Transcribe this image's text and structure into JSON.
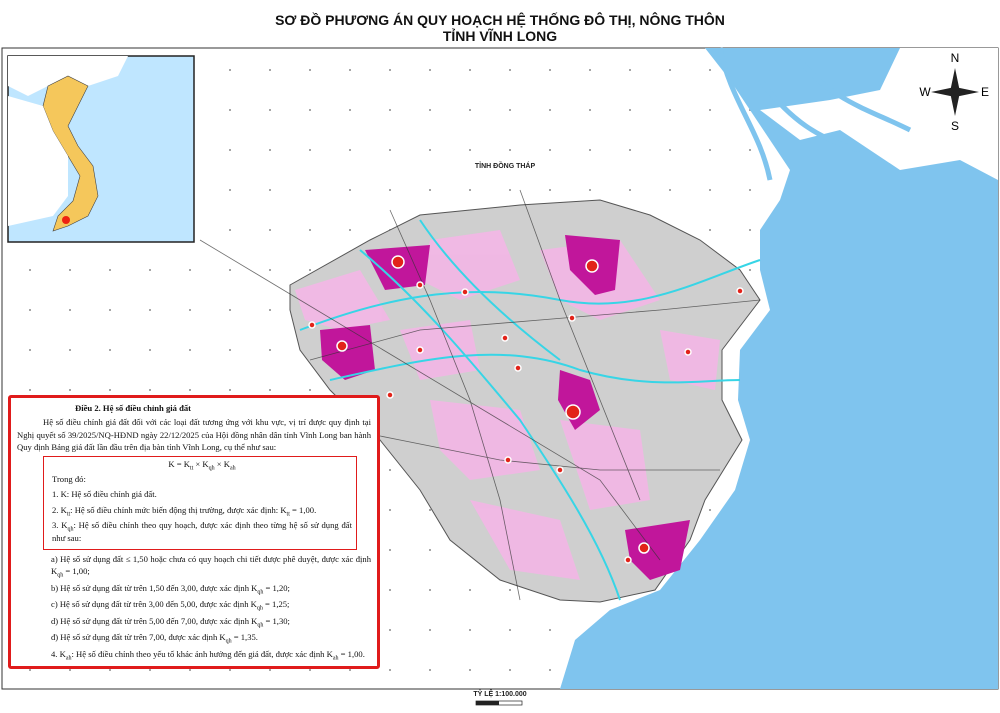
{
  "header": {
    "title": "SƠ ĐỒ PHƯƠNG ÁN QUY HOẠCH HỆ THỐNG ĐÔ THỊ, NÔNG THÔN",
    "subtitle": "TỈNH VĨNH LONG"
  },
  "map": {
    "region_label": "TỈNH ĐỒNG THÁP",
    "compass": {
      "north": "N",
      "west": "W",
      "east": "E",
      "south": "S"
    },
    "scale": "TỶ LỆ 1:100.000"
  },
  "document": {
    "heading": "Điều 2. Hệ số điều chỉnh giá đất",
    "paragraph": "Hệ số điều chỉnh giá đất đối với các loại đất tương ứng với khu vực, vị trí được quy định tại Nghị quyết số 39/2025/NQ-HĐND ngày 22/12/2025 của Hội đồng nhân dân tỉnh Vĩnh Long ban hành Quy định Bảng giá đất lần đầu trên địa bàn tỉnh Vĩnh Long, cụ thể như sau:",
    "formula": [
      "K = K",
      "tt",
      " × K",
      "qh",
      " × K",
      "ah"
    ],
    "boxed_items": [
      [
        "Trong đó:"
      ],
      [
        "1. K: Hệ số điều chỉnh giá đất."
      ],
      [
        "2. K",
        "tt",
        ": Hệ số điều chỉnh mức biến động thị trường, được xác định: K",
        "tt",
        " = 1,00."
      ],
      [
        "3. K",
        "qh",
        ": Hệ số điều chỉnh theo quy hoạch, được xác định theo từng hệ số sử dụng đất như sau:"
      ]
    ],
    "items": [
      [
        "a) Hệ số sử dụng đất ≤ 1,50 hoặc chưa có quy hoạch chi tiết được phê duyệt, được xác định K",
        "qh",
        " = 1,00;"
      ],
      [
        "b) Hệ số sử dụng đất từ trên 1,50 đến 3,00, được xác định K",
        "qh",
        " = 1,20;"
      ],
      [
        "c) Hệ số sử dụng đất từ trên 3,00 đến 5,00, được xác định K",
        "qh",
        " = 1,25;"
      ],
      [
        "d) Hệ số sử dụng đất từ trên 5,00 đến 7,00, được xác định K",
        "qh",
        " = 1,30;"
      ],
      [
        "đ) Hệ số sử dụng đất từ trên 7,00, được xác định K",
        "qh",
        " = 1,35."
      ],
      [
        "4. K",
        "ah",
        ": Hệ số điều chỉnh theo yếu tố khác ảnh hưởng đến giá đất, được xác định K",
        "ah",
        " = 1,00."
      ]
    ]
  }
}
